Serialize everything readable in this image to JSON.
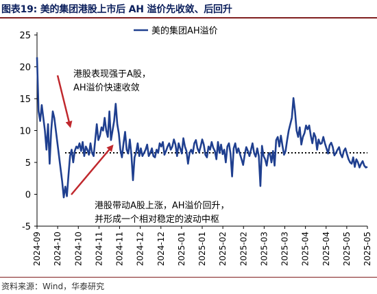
{
  "header": {
    "title": "图表19:  美的集团港股上市后 AH 溢价先收敛、后回升"
  },
  "footer": {
    "source": "资料来源：Wind，华泰研究"
  },
  "chart_data": {
    "type": "line",
    "title": "图表19:  美的集团港股上市后 AH 溢价先收敛、后回升",
    "xlabel": "",
    "ylabel": "",
    "ylim": [
      -5,
      25
    ],
    "yticks": [
      -5,
      0,
      5,
      10,
      15,
      20,
      25
    ],
    "xticks": [
      "2024-09",
      "2024-10",
      "2024-10",
      "2024-11",
      "2024-11",
      "2024-12",
      "2024-12",
      "2025-01",
      "2025-01",
      "2025-02",
      "2025-02",
      "2025-03",
      "2025-03",
      "2025-04",
      "2025-04",
      "2025-05",
      "2025-05"
    ],
    "grid": false,
    "legend": "top-center",
    "colors": {
      "series": "#1f3f8f",
      "arrow": "#c0282d",
      "dotted": "#000000"
    },
    "series": [
      {
        "name": "美的集团AH溢价",
        "x_start": 0,
        "x_end": 1,
        "values": [
          21.5,
          13,
          11.5,
          14,
          12,
          10,
          7,
          11,
          4.8,
          10,
          13,
          12,
          10,
          8,
          6,
          4,
          2,
          -0.5,
          1.2,
          -0.3,
          3,
          6,
          7,
          5,
          6.8,
          7.5,
          7.2,
          8,
          6.8,
          8.2,
          6,
          7.5,
          7,
          6.2,
          8,
          6.5,
          6,
          8.5,
          11,
          8.5,
          9.2,
          10.5,
          10,
          12,
          10,
          9,
          13,
          8.5,
          10,
          11.5,
          14.2,
          11,
          9.5,
          7,
          5.8,
          8,
          9.8,
          7,
          6.4,
          8.6,
          6.2,
          2.2,
          5.8,
          6.6,
          8,
          6,
          7.2,
          6,
          6.5,
          7,
          7.8,
          6,
          6.5,
          7.2,
          6,
          5.8,
          7,
          6.5,
          8,
          7.5,
          8.2,
          6.2,
          6.8,
          7.5,
          8,
          7,
          7.5,
          8.6,
          7.8,
          6,
          8,
          7.2,
          6.4,
          8.8,
          7.5,
          6.8,
          4.8,
          6.5,
          7,
          6.4,
          8,
          8.5,
          7.2,
          6.6,
          7.5,
          8.6,
          7.8,
          6.2,
          5.8,
          7.5,
          7,
          8.2,
          7.3,
          6.8,
          5.5,
          8.2,
          6.5,
          7.8,
          6.3,
          7,
          5,
          7.5,
          8,
          6.4,
          2.8,
          7.2,
          8,
          6.5,
          7.2,
          6.3,
          5.5,
          4.6,
          6.2,
          7.4,
          6.8,
          6,
          7,
          8,
          6.5,
          5.9,
          7.2,
          6,
          1.3,
          7.6,
          6,
          5.5,
          4.5,
          6.2,
          6.5,
          5,
          6.8,
          4.5,
          8.5,
          9,
          7.5,
          9.2,
          7.6,
          6.2,
          6.8,
          8.5,
          10,
          11,
          12,
          15.1,
          13,
          10,
          9,
          10.5,
          7.8,
          9,
          9.6,
          10.8,
          10.2,
          10.8,
          9.2,
          8,
          9.6,
          9,
          7,
          8.6,
          7.9,
          8,
          9,
          8,
          7.2,
          6.4,
          7.7,
          8.1,
          7.4,
          6.1,
          6.5,
          7,
          7.4,
          6.3,
          5.8,
          6.8,
          7.2,
          6.3,
          5.5,
          5,
          4.8,
          5.8,
          4.3,
          5.5,
          5,
          4.2,
          4.8,
          5.2,
          4.5,
          4.2,
          4.3
        ]
      }
    ],
    "reference_line": {
      "value": 6.5,
      "style": "dotted"
    },
    "annotations": [
      {
        "text_lines": [
          "港股表现强于A股，",
          "AH溢价快速收敛"
        ],
        "placement": "upper-left"
      },
      {
        "text_lines": [
          "港股带动A股上涨，AH溢价回升，",
          "并形成一个相对稳定的波动中枢"
        ],
        "placement": "lower-center"
      }
    ]
  }
}
